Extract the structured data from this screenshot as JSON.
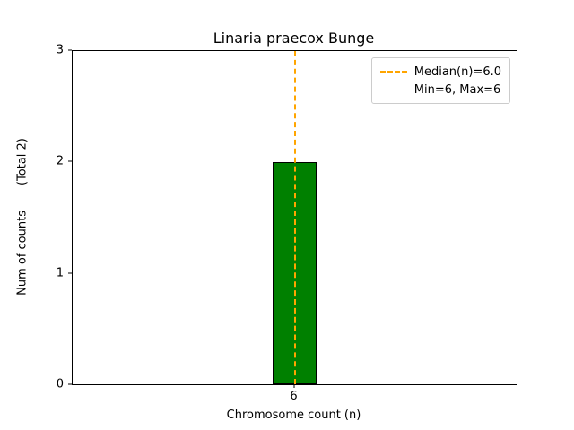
{
  "chart_data": {
    "type": "bar",
    "title": "Linaria praecox Bunge",
    "xlabel": "Chromosome count (n)",
    "ylabel": "Num of counts",
    "ylabel_total": "(Total 2)",
    "categories": [
      "6"
    ],
    "x": [
      6
    ],
    "values": [
      2
    ],
    "total": 2,
    "bar_width": 0.8,
    "bar_color": "#008000",
    "bar_edge_color": "#000000",
    "median": 6.0,
    "min": 6,
    "max": 6,
    "median_line": {
      "x": 6,
      "color": "#FFA500",
      "style": "dashed"
    },
    "xlim": [
      2,
      10
    ],
    "ylim": [
      0,
      3
    ],
    "yticks": [
      0,
      1,
      2,
      3
    ],
    "xticks": [
      6
    ],
    "grid": false,
    "legend": {
      "position": "upper right",
      "entries": [
        {
          "label": "Median(n)=6.0",
          "line_color": "#FFA500",
          "line_style": "dashed"
        },
        {
          "label": "Min=6, Max=6",
          "line_color": null,
          "line_style": null
        }
      ]
    }
  }
}
